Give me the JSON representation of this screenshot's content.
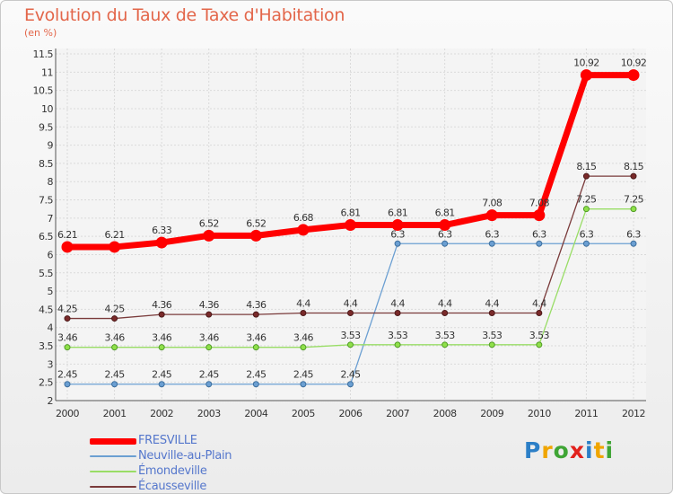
{
  "header": {
    "title": "Evolution du Taux de Taxe d'Habitation",
    "unit": "(en %)"
  },
  "brand": {
    "letters": [
      "P",
      "r",
      "o",
      "x",
      "i",
      "t",
      "i"
    ],
    "colors": [
      "#2c7fc7",
      "#f0a500",
      "#3fa535",
      "#e2211c",
      "#2c7fc7",
      "#f0a500",
      "#3fa535"
    ]
  },
  "chart_data": {
    "type": "line",
    "title": "Evolution du Taux de Taxe d'Habitation",
    "ylabel": "(en %)",
    "xlabel": "",
    "x": [
      "2000",
      "2001",
      "2002",
      "2003",
      "2004",
      "2005",
      "2006",
      "2007",
      "2008",
      "2009",
      "2010",
      "2011",
      "2012"
    ],
    "ylim": [
      2,
      11.5
    ],
    "yticks": [
      "2",
      "2.5",
      "3",
      "3.5",
      "4",
      "4.5",
      "5",
      "5.5",
      "6",
      "6.5",
      "7",
      "7.5",
      "8",
      "8.5",
      "9",
      "9.5",
      "10",
      "10.5",
      "11",
      "11.5"
    ],
    "grid": true,
    "legend": "bottom-left",
    "series": [
      {
        "name": "FRESVILLE",
        "color": "#ff0000",
        "values": [
          6.21,
          6.21,
          6.33,
          6.52,
          6.52,
          6.68,
          6.81,
          6.81,
          6.81,
          7.08,
          7.08,
          10.92,
          10.92
        ],
        "labels": [
          "6.21",
          "6.21",
          "6.33",
          "6.52",
          "6.52",
          "6.68",
          "6.81",
          "6.81",
          "6.81",
          "7.08",
          "7.08",
          "10.92",
          "10.92"
        ]
      },
      {
        "name": "Neuville-au-Plain",
        "color": "#6b9fd2",
        "values": [
          2.45,
          2.45,
          2.45,
          2.45,
          2.45,
          2.45,
          2.45,
          6.3,
          6.3,
          6.3,
          6.3,
          6.3,
          6.3
        ],
        "labels": [
          "2.45",
          "2.45",
          "2.45",
          "2.45",
          "2.45",
          "2.45",
          "2.45",
          "6.3",
          "6.3",
          "6.3",
          "6.3",
          "6.3",
          "6.3"
        ]
      },
      {
        "name": "Émondeville",
        "color": "#99dd66",
        "values": [
          3.46,
          3.46,
          3.46,
          3.46,
          3.46,
          3.46,
          3.53,
          3.53,
          3.53,
          3.53,
          3.53,
          7.25,
          7.25
        ],
        "labels": [
          "3.46",
          "3.46",
          "3.46",
          "3.46",
          "3.46",
          "3.46",
          "3.53",
          "3.53",
          "3.53",
          "3.53",
          "3.53",
          "7.25",
          "7.25"
        ]
      },
      {
        "name": "Écausseville",
        "color": "#7a3b3b",
        "values": [
          4.25,
          4.25,
          4.36,
          4.36,
          4.36,
          4.4,
          4.4,
          4.4,
          4.4,
          4.4,
          4.4,
          8.15,
          8.15
        ],
        "labels": [
          "4.25",
          "4.25",
          "4.36",
          "4.36",
          "4.36",
          "4.4",
          "4.4",
          "4.4",
          "4.4",
          "4.4",
          "4.4",
          "8.15",
          "8.15"
        ]
      }
    ]
  }
}
